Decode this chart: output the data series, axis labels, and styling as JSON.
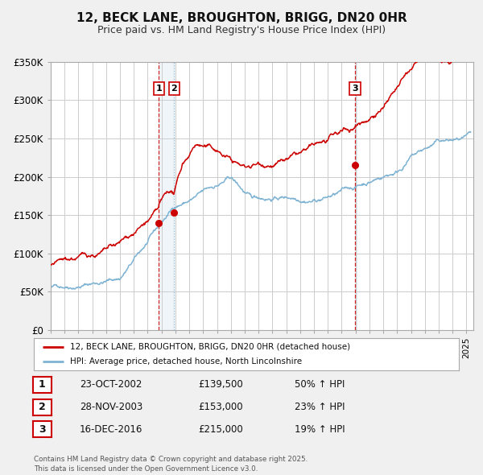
{
  "title": "12, BECK LANE, BROUGHTON, BRIGG, DN20 0HR",
  "subtitle": "Price paid vs. HM Land Registry's House Price Index (HPI)",
  "ylim": [
    0,
    350000
  ],
  "yticks": [
    0,
    50000,
    100000,
    150000,
    200000,
    250000,
    300000,
    350000
  ],
  "ytick_labels": [
    "£0",
    "£50K",
    "£100K",
    "£150K",
    "£200K",
    "£250K",
    "£300K",
    "£350K"
  ],
  "xlim_start": 1995.0,
  "xlim_end": 2025.5,
  "background_color": "#f0f0f0",
  "plot_bg_color": "#ffffff",
  "grid_color": "#cccccc",
  "red_line_color": "#cc0000",
  "blue_line_color": "#7fb3d3",
  "vline_color_red": "#cc0000",
  "vline_color_blue": "#7fb3d3",
  "sale_dates": [
    2002.81,
    2003.91,
    2016.96
  ],
  "sale_prices": [
    139500,
    153000,
    215000
  ],
  "legend_red": "12, BECK LANE, BROUGHTON, BRIGG, DN20 0HR (detached house)",
  "legend_blue": "HPI: Average price, detached house, North Lincolnshire",
  "table_rows": [
    {
      "num": "1",
      "date": "23-OCT-2002",
      "price": "£139,500",
      "change": "50% ↑ HPI"
    },
    {
      "num": "2",
      "date": "28-NOV-2003",
      "price": "£153,000",
      "change": "23% ↑ HPI"
    },
    {
      "num": "3",
      "date": "16-DEC-2016",
      "price": "£215,000",
      "change": "19% ↑ HPI"
    }
  ],
  "footer_line1": "Contains HM Land Registry data © Crown copyright and database right 2025.",
  "footer_line2": "This data is licensed under the Open Government Licence v3.0."
}
